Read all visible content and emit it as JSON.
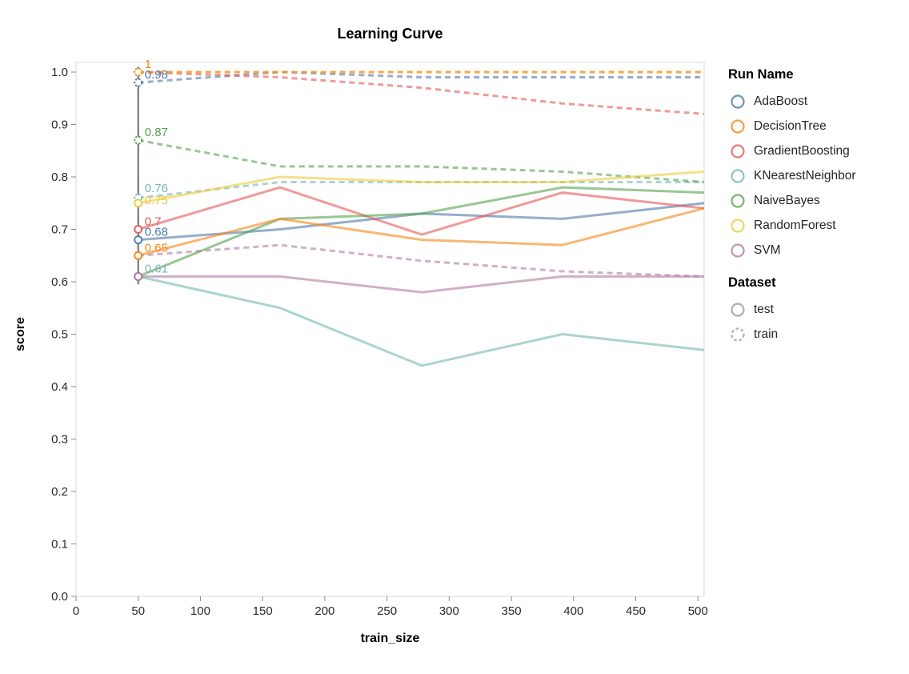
{
  "chart": {
    "title": "Learning Curve",
    "xlabel": "train_size",
    "ylabel": "score"
  },
  "legend": {
    "run_name_title": "Run Name",
    "dataset_title": "Dataset",
    "runs": [
      {
        "label": "AdaBoost",
        "color": "#4c78a8"
      },
      {
        "label": "DecisionTree",
        "color": "#f58518"
      },
      {
        "label": "GradientBoosting",
        "color": "#e45756"
      },
      {
        "label": "KNearestNeighbor",
        "color": "#72b7b2"
      },
      {
        "label": "NaiveBayes",
        "color": "#54a24b"
      },
      {
        "label": "RandomForest",
        "color": "#eeca3b"
      },
      {
        "label": "SVM",
        "color": "#b279a2"
      }
    ],
    "datasets": [
      {
        "label": "test",
        "style": "solid",
        "color": "#9a9a9a"
      },
      {
        "label": "train",
        "style": "dashed",
        "color": "#9a9a9a"
      }
    ]
  },
  "chart_data": {
    "type": "line",
    "title": "Learning Curve",
    "xlabel": "train_size",
    "ylabel": "score",
    "xlim": [
      0,
      505
    ],
    "ylim": [
      0,
      1
    ],
    "x_ticks": [
      0,
      50,
      100,
      150,
      200,
      250,
      300,
      350,
      400,
      450,
      500
    ],
    "y_ticks": [
      0,
      0.1,
      0.2,
      0.3,
      0.4,
      0.5,
      0.6,
      0.7,
      0.8,
      0.9,
      1.0
    ],
    "grid": false,
    "legend_position": "right",
    "x": [
      50,
      164,
      278,
      391,
      505
    ],
    "rule": {
      "x": 50
    },
    "series": [
      {
        "name": "AdaBoost",
        "dataset": "test",
        "color": "#4c78a8",
        "values": [
          0.68,
          0.7,
          0.73,
          0.72,
          0.75
        ]
      },
      {
        "name": "AdaBoost",
        "dataset": "train",
        "color": "#4c78a8",
        "values": [
          0.98,
          1.0,
          0.99,
          0.99,
          0.99
        ]
      },
      {
        "name": "GradientBoosting",
        "dataset": "test",
        "color": "#e45756",
        "values": [
          0.7,
          0.78,
          0.69,
          0.77,
          0.74
        ]
      },
      {
        "name": "GradientBoosting",
        "dataset": "train",
        "color": "#e45756",
        "values": [
          1.0,
          0.99,
          0.97,
          0.94,
          0.92
        ]
      },
      {
        "name": "KNearestNeighbor",
        "dataset": "test",
        "color": "#72b7b2",
        "values": [
          0.61,
          0.55,
          0.44,
          0.5,
          0.47
        ]
      },
      {
        "name": "KNearestNeighbor",
        "dataset": "train",
        "color": "#72b7b2",
        "values": [
          0.76,
          0.79,
          0.79,
          0.79,
          0.79
        ]
      },
      {
        "name": "NaiveBayes",
        "dataset": "test",
        "color": "#54a24b",
        "values": [
          0.61,
          0.72,
          0.73,
          0.78,
          0.77
        ]
      },
      {
        "name": "NaiveBayes",
        "dataset": "train",
        "color": "#54a24b",
        "values": [
          0.87,
          0.82,
          0.82,
          0.81,
          0.79
        ]
      },
      {
        "name": "SVM",
        "dataset": "test",
        "color": "#b279a2",
        "values": [
          0.61,
          0.61,
          0.58,
          0.61,
          0.61
        ]
      },
      {
        "name": "SVM",
        "dataset": "train",
        "color": "#b279a2",
        "values": [
          0.65,
          0.67,
          0.64,
          0.62,
          0.61
        ]
      },
      {
        "name": "RandomForest",
        "dataset": "test",
        "color": "#eeca3b",
        "values": [
          0.75,
          0.8,
          0.79,
          0.79,
          0.81
        ]
      },
      {
        "name": "RandomForest",
        "dataset": "train",
        "color": "#eeca3b",
        "values": [
          1.0,
          1.0,
          1.0,
          1.0,
          1.0
        ]
      },
      {
        "name": "DecisionTree",
        "dataset": "test",
        "color": "#f58518",
        "values": [
          0.65,
          0.72,
          0.68,
          0.67,
          0.74
        ]
      },
      {
        "name": "DecisionTree",
        "dataset": "train",
        "color": "#f58518",
        "values": [
          1.0,
          1.0,
          1.0,
          1.0,
          1.0
        ]
      }
    ],
    "point_labels": [
      {
        "text": "1",
        "value": 1.0,
        "color": "#f58518",
        "dy": 0
      },
      {
        "text": "0.98",
        "value": 0.98,
        "color": "#4c78a8",
        "dy": 0
      },
      {
        "text": "0.87",
        "value": 0.87,
        "color": "#54a24b",
        "dy": 0
      },
      {
        "text": "0.76",
        "value": 0.76,
        "color": "#72b7b2",
        "dy": -2
      },
      {
        "text": "0.75",
        "value": 0.75,
        "color": "#eeca3b",
        "dy": 6
      },
      {
        "text": "0.7",
        "value": 0.7,
        "color": "#e45756",
        "dy": 0
      },
      {
        "text": "0.68",
        "value": 0.68,
        "color": "#4c78a8",
        "dy": 0
      },
      {
        "text": "0.65",
        "value": 0.65,
        "color": "#f58518",
        "dy": 0
      },
      {
        "text": "0.61",
        "value": 0.61,
        "color": "#72b7b2",
        "dy": 0
      }
    ]
  }
}
